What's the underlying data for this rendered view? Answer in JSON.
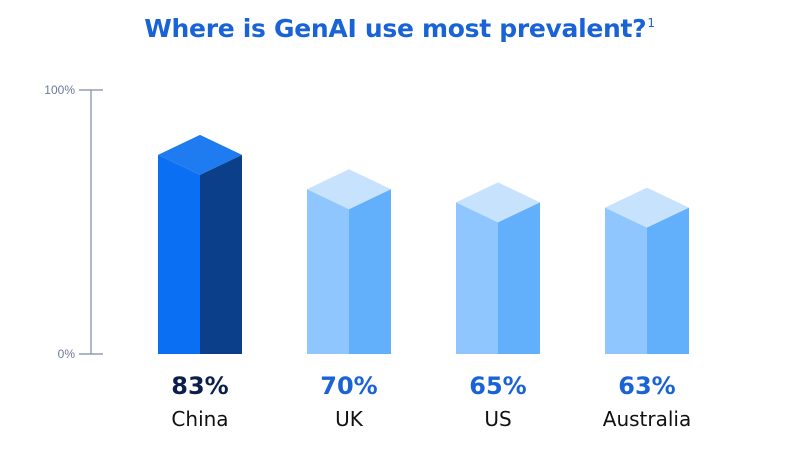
{
  "title": "Where is GenAI use most prevalent?",
  "title_footnote": "1",
  "colors": {
    "title": "#1a63d6",
    "axis": "#7d8aa8",
    "highlight_front": "#0a6ff2",
    "highlight_side": "#0b3f8a",
    "highlight_top": "#1f7cf0",
    "highlight_value": "#0b1f4d",
    "other_front": "#8fc6fd",
    "other_side": "#62b0fb",
    "other_top": "#c7e2fc",
    "other_value": "#1a63d6"
  },
  "chart_data": {
    "type": "bar",
    "title": "Where is GenAI use most prevalent?",
    "categories": [
      "China",
      "UK",
      "US",
      "Australia"
    ],
    "values": [
      83,
      70,
      65,
      63
    ],
    "value_labels": [
      "83%",
      "70%",
      "65%",
      "63%"
    ],
    "highlight": [
      "China"
    ],
    "ylim": [
      0,
      100
    ],
    "yticks": [
      "0%",
      "100%"
    ],
    "xlabel": "",
    "ylabel": "",
    "grid": false,
    "legend": "none"
  }
}
